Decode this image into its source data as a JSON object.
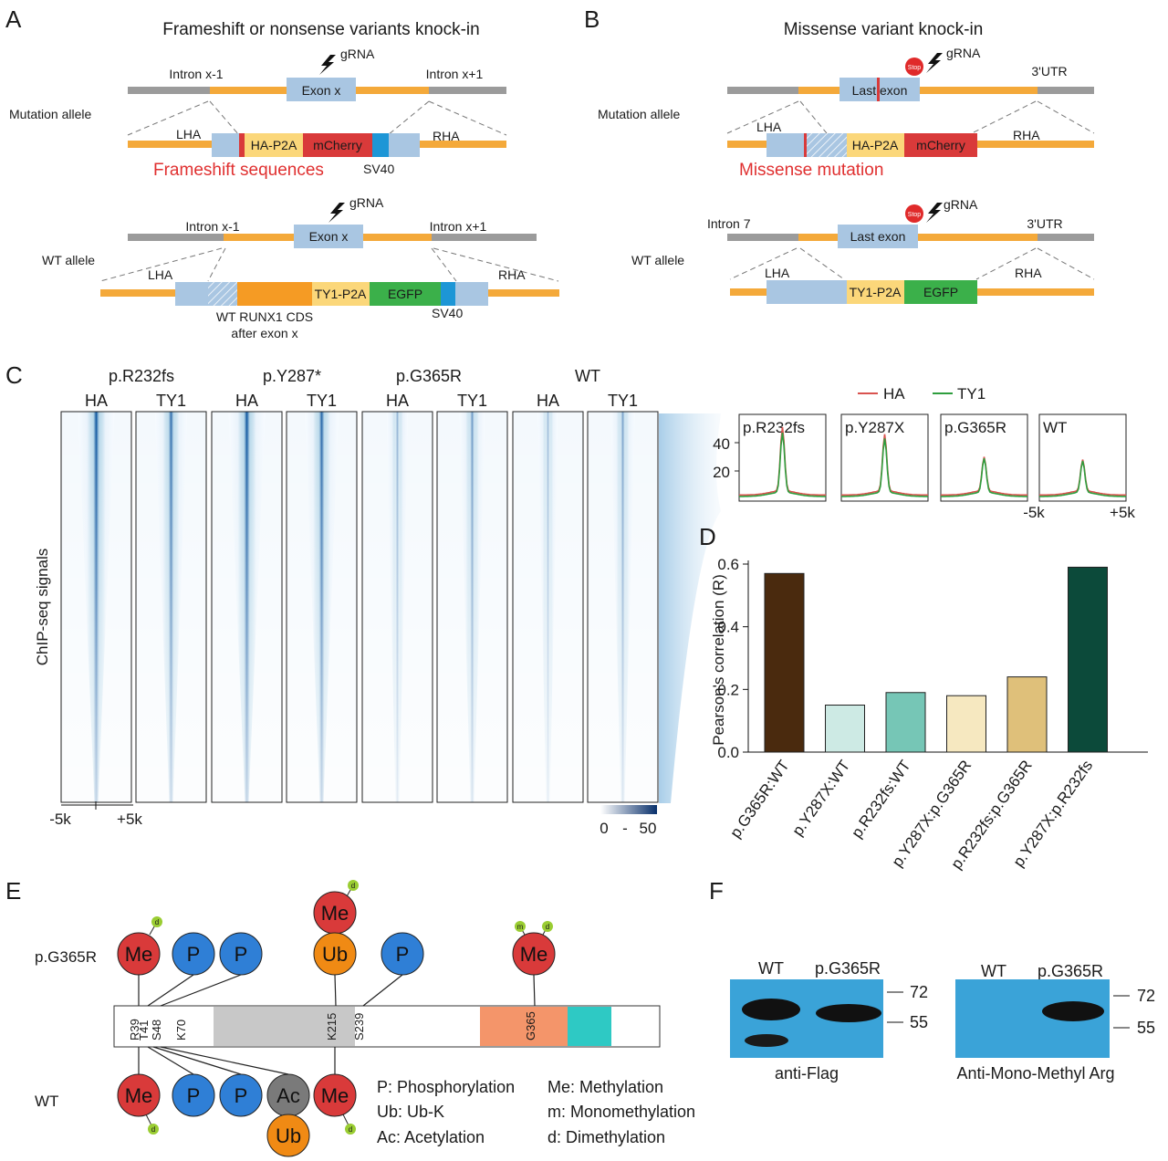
{
  "panels": {
    "A": {
      "letter": "A",
      "title": "Frameshift or nonsense variants knock-in",
      "mutation_allele_label": "Mutation allele",
      "wt_allele_label": "WT allele",
      "gRNA": "gRNA",
      "intron_left": "Intron x-1",
      "intron_right": "Intron x+1",
      "exon": "Exon x",
      "LHA": "LHA",
      "RHA": "RHA",
      "mut_tag": "HA-P2A",
      "mut_fp": "mCherry",
      "mut_caption": "Frameshift sequences",
      "sv40": "SV40",
      "wt_tag": "TY1-P2A",
      "wt_fp": "EGFP",
      "wt_cds_line1": "WT RUNX1 CDS",
      "wt_cds_line2": "after exon x"
    },
    "B": {
      "letter": "B",
      "title": "Missense variant knock-in",
      "mutation_allele_label": "Mutation allele",
      "wt_allele_label": "WT allele",
      "gRNA": "gRNA",
      "stop": "Stop",
      "utr": "3'UTR",
      "intron7": "Intron 7",
      "last_exon": "Last exon",
      "LHA": "LHA",
      "RHA": "RHA",
      "mut_tag": "HA-P2A",
      "mut_fp": "mCherry",
      "mut_caption": "Missense mutation",
      "wt_tag": "TY1-P2A",
      "wt_fp": "EGFP"
    },
    "C": {
      "letter": "C",
      "ylabel": "ChIP-seq signals",
      "groups": [
        "p.R232fs",
        "p.Y287*",
        "p.G365R",
        "WT"
      ],
      "columns": [
        "HA",
        "TY1",
        "HA",
        "TY1",
        "HA",
        "TY1",
        "HA",
        "TY1"
      ],
      "column_intensity": [
        1.0,
        0.85,
        1.0,
        0.9,
        0.45,
        0.6,
        0.4,
        0.55
      ],
      "x_left": "-5k",
      "x_right": "+5k",
      "scale_min": "0",
      "scale_dash": "-",
      "scale_max": "50",
      "color_low": "#ffffff",
      "color_high": "#08306b",
      "legend_HA": "HA",
      "legend_TY1": "TY1",
      "profile_titles": [
        "p.R232fs",
        "p.Y287X",
        "p.G365R",
        "WT"
      ],
      "profile_ticks": [
        "40",
        "20"
      ],
      "profile_x_left": "-5k",
      "profile_x_right": "+5k",
      "HA_color": "#d9534f",
      "TY1_color": "#2e9e3e"
    },
    "D": {
      "letter": "D",
      "ylabel": "Pearson's correlation (R)",
      "yticks": [
        "0.0",
        "0.2",
        "0.4",
        "0.6"
      ]
    },
    "E": {
      "letter": "E",
      "label_mut": "p.G365R",
      "label_wt": "WT",
      "sites_mut": [
        {
          "text": "Me",
          "mods": [
            "d"
          ]
        },
        {
          "text": "P",
          "mods": []
        },
        {
          "text": "P",
          "mods": []
        },
        {
          "text": "Me",
          "mods": [
            "d"
          ]
        },
        {
          "text": "Ub",
          "mods": []
        },
        {
          "text": "P",
          "mods": []
        },
        {
          "text": "Me",
          "mods": [
            "m",
            "d"
          ]
        }
      ],
      "sites_wt": [
        {
          "text": "Me",
          "mods": [
            "d"
          ]
        },
        {
          "text": "P",
          "mods": []
        },
        {
          "text": "P",
          "mods": []
        },
        {
          "text": "Ac",
          "mods": []
        },
        {
          "text": "Ub",
          "mods": []
        },
        {
          "text": "Me",
          "mods": [
            "d"
          ]
        }
      ],
      "residues": [
        "R39",
        "T41",
        "S48",
        "K70",
        "K215",
        "S239",
        "G365"
      ],
      "legend": [
        "P: Phosphorylation",
        "Me: Methylation",
        "Ub: Ub-K",
        "m: Monomethylation",
        "Ac: Acetylation",
        "d: Dimethylation"
      ],
      "colors": {
        "Me": "#d93a3a",
        "P": "#2f7fd6",
        "Ub": "#f08a14",
        "Ac": "#7a7a7a",
        "mod": "#9acd32",
        "runt": "#c8c8c8",
        "tad": "#f4956a",
        "cterm": "#2ec9c4"
      }
    },
    "F": {
      "letter": "F",
      "blot1_labels": [
        "WT",
        "p.G365R"
      ],
      "blot1_caption": "anti-Flag",
      "blot2_labels": [
        "WT",
        "p.G365R"
      ],
      "blot2_caption": "Anti-Mono-Methyl Arg",
      "markers": [
        "72",
        "55"
      ],
      "blot_color": "#3aa3d8",
      "band_color": "#1a1a1a"
    }
  },
  "chart_data": {
    "type": "bar",
    "title": "",
    "xlabel": "",
    "ylabel": "Pearson's correlation (R)",
    "ylim": [
      0,
      0.6
    ],
    "grid": false,
    "categories": [
      "p.G365R:WT",
      "p.Y287X:WT",
      "p.R232fs:WT",
      "p.Y287X:p.G365R",
      "p.R232fs:p.G365R",
      "p.Y287X:p.R232fs"
    ],
    "values": [
      0.57,
      0.15,
      0.19,
      0.18,
      0.24,
      0.59
    ],
    "colors": [
      "#4a2a0e",
      "#cdeae4",
      "#76c6b6",
      "#f6e8c0",
      "#dfc07a",
      "#0c4a3a"
    ]
  }
}
